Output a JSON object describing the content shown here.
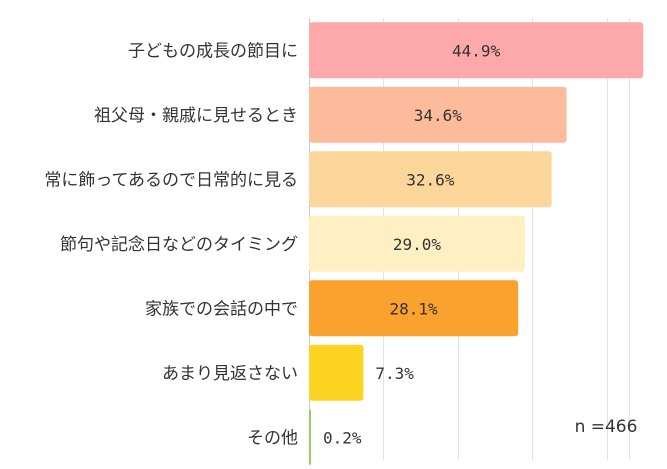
{
  "chart_data": {
    "type": "bar",
    "orientation": "horizontal",
    "categories": [
      "子どもの成長の節目に",
      "祖父母・親戚に見せるとき",
      "常に飾ってあるので日常的に見る",
      "節句や記念日などのタイミング",
      "家族での会話の中で",
      "あまり見返さない",
      "その他"
    ],
    "values": [
      44.9,
      34.6,
      32.6,
      29.0,
      28.1,
      7.3,
      0.2
    ],
    "value_labels": [
      "44.9%",
      "34.6%",
      "32.6%",
      "29.0%",
      "28.1%",
      "7.3%",
      "0.2%"
    ],
    "bar_colors": [
      "#fda9ab",
      "#fcbc9b",
      "#fdd69c",
      "#fff0c4",
      "#fba12e",
      "#fdd322",
      "#9acd5a"
    ],
    "xlim": [
      0,
      45
    ],
    "grid": true,
    "legend": "none",
    "annotation": "n =466"
  }
}
